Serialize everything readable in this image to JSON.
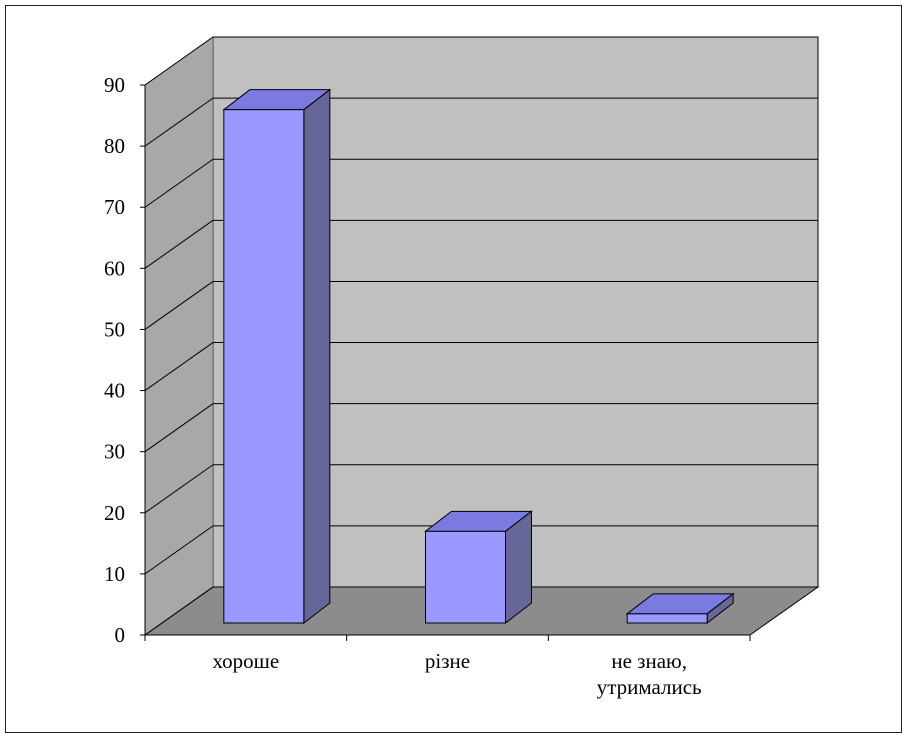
{
  "chart_data": {
    "type": "bar",
    "style": "3d-column",
    "title": "",
    "xlabel": "",
    "ylabel": "",
    "categories": [
      "хороше",
      "різне",
      "не знаю,\nутримались"
    ],
    "values": [
      84,
      15,
      1.5
    ],
    "ylim": [
      0,
      90
    ],
    "yticks": [
      0,
      10,
      20,
      30,
      40,
      50,
      60,
      70,
      80,
      90
    ],
    "grid": true,
    "legend": "none",
    "colors": {
      "bar_front": "#9999ff",
      "bar_side": "#666699",
      "bar_top": "#7a7ae0",
      "back_wall": "#c0c0c0",
      "side_wall": "#a8a8a8",
      "floor": "#8c8c8c"
    }
  }
}
